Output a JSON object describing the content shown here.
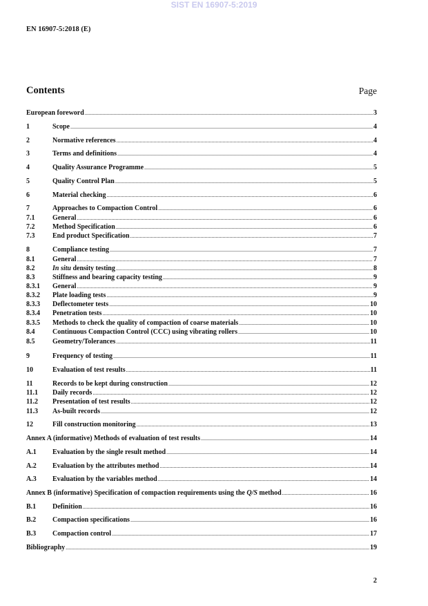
{
  "watermark": "SIST EN 16907-5:2019",
  "header": "EN 16907-5:2018 (E)",
  "contents_title": "Contents",
  "page_label": "Page",
  "page_number": "2",
  "toc": [
    {
      "num": "",
      "pre": "European foreword",
      "page": "3"
    },
    {
      "num": "1",
      "pre": "Scope",
      "page": "4"
    },
    {
      "num": "2",
      "pre": "Normative references",
      "page": "4"
    },
    {
      "num": "3",
      "pre": "Terms and definitions",
      "page": "4"
    },
    {
      "num": "4",
      "pre": "Quality Assurance Programme",
      "page": "5"
    },
    {
      "num": "5",
      "pre": "Quality Control Plan",
      "page": "5"
    },
    {
      "num": "6",
      "pre": "Material checking",
      "page": "6"
    },
    {
      "num": "7",
      "pre": "Approaches to Compaction Control",
      "page": "6"
    },
    {
      "num": "7.1",
      "pre": "General",
      "page": "6"
    },
    {
      "num": "7.2",
      "pre": "Method Specification",
      "page": "6"
    },
    {
      "num": "7.3",
      "pre": "End product Specification",
      "page": "7"
    },
    {
      "num": "8",
      "pre": "Compliance testing",
      "page": "7"
    },
    {
      "num": "8.1",
      "pre": "General",
      "page": "7"
    },
    {
      "num": "8.2",
      "pre": "",
      "it": "In situ",
      "post": " density testing",
      "page": "8"
    },
    {
      "num": "8.3",
      "pre": "Stiffness and bearing capacity testing",
      "page": "9"
    },
    {
      "num": "8.3.1",
      "pre": "General",
      "page": "9"
    },
    {
      "num": "8.3.2",
      "pre": "Plate loading tests",
      "page": "9"
    },
    {
      "num": "8.3.3",
      "pre": "Deflectometer tests",
      "page": "10"
    },
    {
      "num": "8.3.4",
      "pre": "Penetration tests",
      "page": "10"
    },
    {
      "num": "8.3.5",
      "pre": "Methods to check the quality of compaction of coarse materials",
      "page": "10"
    },
    {
      "num": "8.4",
      "pre": "Continuous Compaction Control (CCC) using vibrating rollers",
      "page": "10"
    },
    {
      "num": "8.5",
      "pre": "Geometry/Tolerances",
      "page": "11"
    },
    {
      "num": "9",
      "pre": "Frequency of testing",
      "page": "11"
    },
    {
      "num": "10",
      "pre": "Evaluation of test results",
      "page": "11"
    },
    {
      "num": "11",
      "pre": "Records to be kept during construction",
      "page": "12"
    },
    {
      "num": "11.1",
      "pre": "Daily records",
      "page": "12"
    },
    {
      "num": "11.2",
      "pre": "Presentation of test results",
      "page": "12"
    },
    {
      "num": "11.3",
      "pre": "As-built records",
      "page": "12"
    },
    {
      "num": "12",
      "pre": "Fill construction monitoring",
      "page": "13"
    },
    {
      "num": "",
      "pre": "Annex A (informative)  Methods of evaluation of test results",
      "page": "14"
    },
    {
      "num": "A.1",
      "pre": "Evaluation by the single result method",
      "page": "14"
    },
    {
      "num": "A.2",
      "pre": "Evaluation by the attributes method",
      "page": "14"
    },
    {
      "num": "A.3",
      "pre": "Evaluation by the variables method",
      "page": "14"
    },
    {
      "num": "",
      "pre": "Annex B (informative)  Specification of compaction requirements using the ",
      "it": "Q/S",
      "post": " method",
      "page": "16"
    },
    {
      "num": "B.1",
      "pre": "Definition",
      "page": "16"
    },
    {
      "num": "B.2",
      "pre": "Compaction specifications",
      "page": "16"
    },
    {
      "num": "B.3",
      "pre": "Compaction control",
      "page": "17"
    },
    {
      "num": "",
      "pre": "Bibliography",
      "page": "19"
    }
  ]
}
